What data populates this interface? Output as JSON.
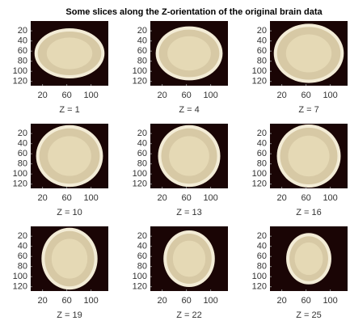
{
  "title": "Some slices along the Z-orientation of the original brain data",
  "chart_data": [
    {
      "type": "image",
      "title": "Z = 1",
      "xlim": [
        0.5,
        128.5
      ],
      "ylim": [
        0.5,
        128.5
      ],
      "xticks": [
        20,
        60,
        100
      ],
      "yticks": [
        20,
        40,
        60,
        80,
        100,
        120
      ]
    },
    {
      "type": "image",
      "title": "Z = 4",
      "xlim": [
        0.5,
        128.5
      ],
      "ylim": [
        0.5,
        128.5
      ],
      "xticks": [
        20,
        60,
        100
      ],
      "yticks": [
        20,
        40,
        60,
        80,
        100,
        120
      ]
    },
    {
      "type": "image",
      "title": "Z = 7",
      "xlim": [
        0.5,
        128.5
      ],
      "ylim": [
        0.5,
        128.5
      ],
      "xticks": [
        20,
        60,
        100
      ],
      "yticks": [
        20,
        40,
        60,
        80,
        100,
        120
      ]
    },
    {
      "type": "image",
      "title": "Z = 10",
      "xlim": [
        0.5,
        128.5
      ],
      "ylim": [
        0.5,
        128.5
      ],
      "xticks": [
        20,
        60,
        100
      ],
      "yticks": [
        20,
        40,
        60,
        80,
        100,
        120
      ]
    },
    {
      "type": "image",
      "title": "Z = 13",
      "xlim": [
        0.5,
        128.5
      ],
      "ylim": [
        0.5,
        128.5
      ],
      "xticks": [
        20,
        60,
        100
      ],
      "yticks": [
        20,
        40,
        60,
        80,
        100,
        120
      ]
    },
    {
      "type": "image",
      "title": "Z = 16",
      "xlim": [
        0.5,
        128.5
      ],
      "ylim": [
        0.5,
        128.5
      ],
      "xticks": [
        20,
        60,
        100
      ],
      "yticks": [
        20,
        40,
        60,
        80,
        100,
        120
      ]
    },
    {
      "type": "image",
      "title": "Z = 19",
      "xlim": [
        0.5,
        128.5
      ],
      "ylim": [
        0.5,
        128.5
      ],
      "xticks": [
        20,
        60,
        100
      ],
      "yticks": [
        20,
        40,
        60,
        80,
        100,
        120
      ]
    },
    {
      "type": "image",
      "title": "Z = 22",
      "xlim": [
        0.5,
        128.5
      ],
      "ylim": [
        0.5,
        128.5
      ],
      "xticks": [
        20,
        60,
        100
      ],
      "yticks": [
        20,
        40,
        60,
        80,
        100,
        120
      ]
    },
    {
      "type": "image",
      "title": "Z = 25",
      "xlim": [
        0.5,
        128.5
      ],
      "ylim": [
        0.5,
        128.5
      ],
      "xticks": [
        20,
        60,
        100
      ],
      "yticks": [
        20,
        40,
        60,
        80,
        100,
        120
      ]
    }
  ]
}
